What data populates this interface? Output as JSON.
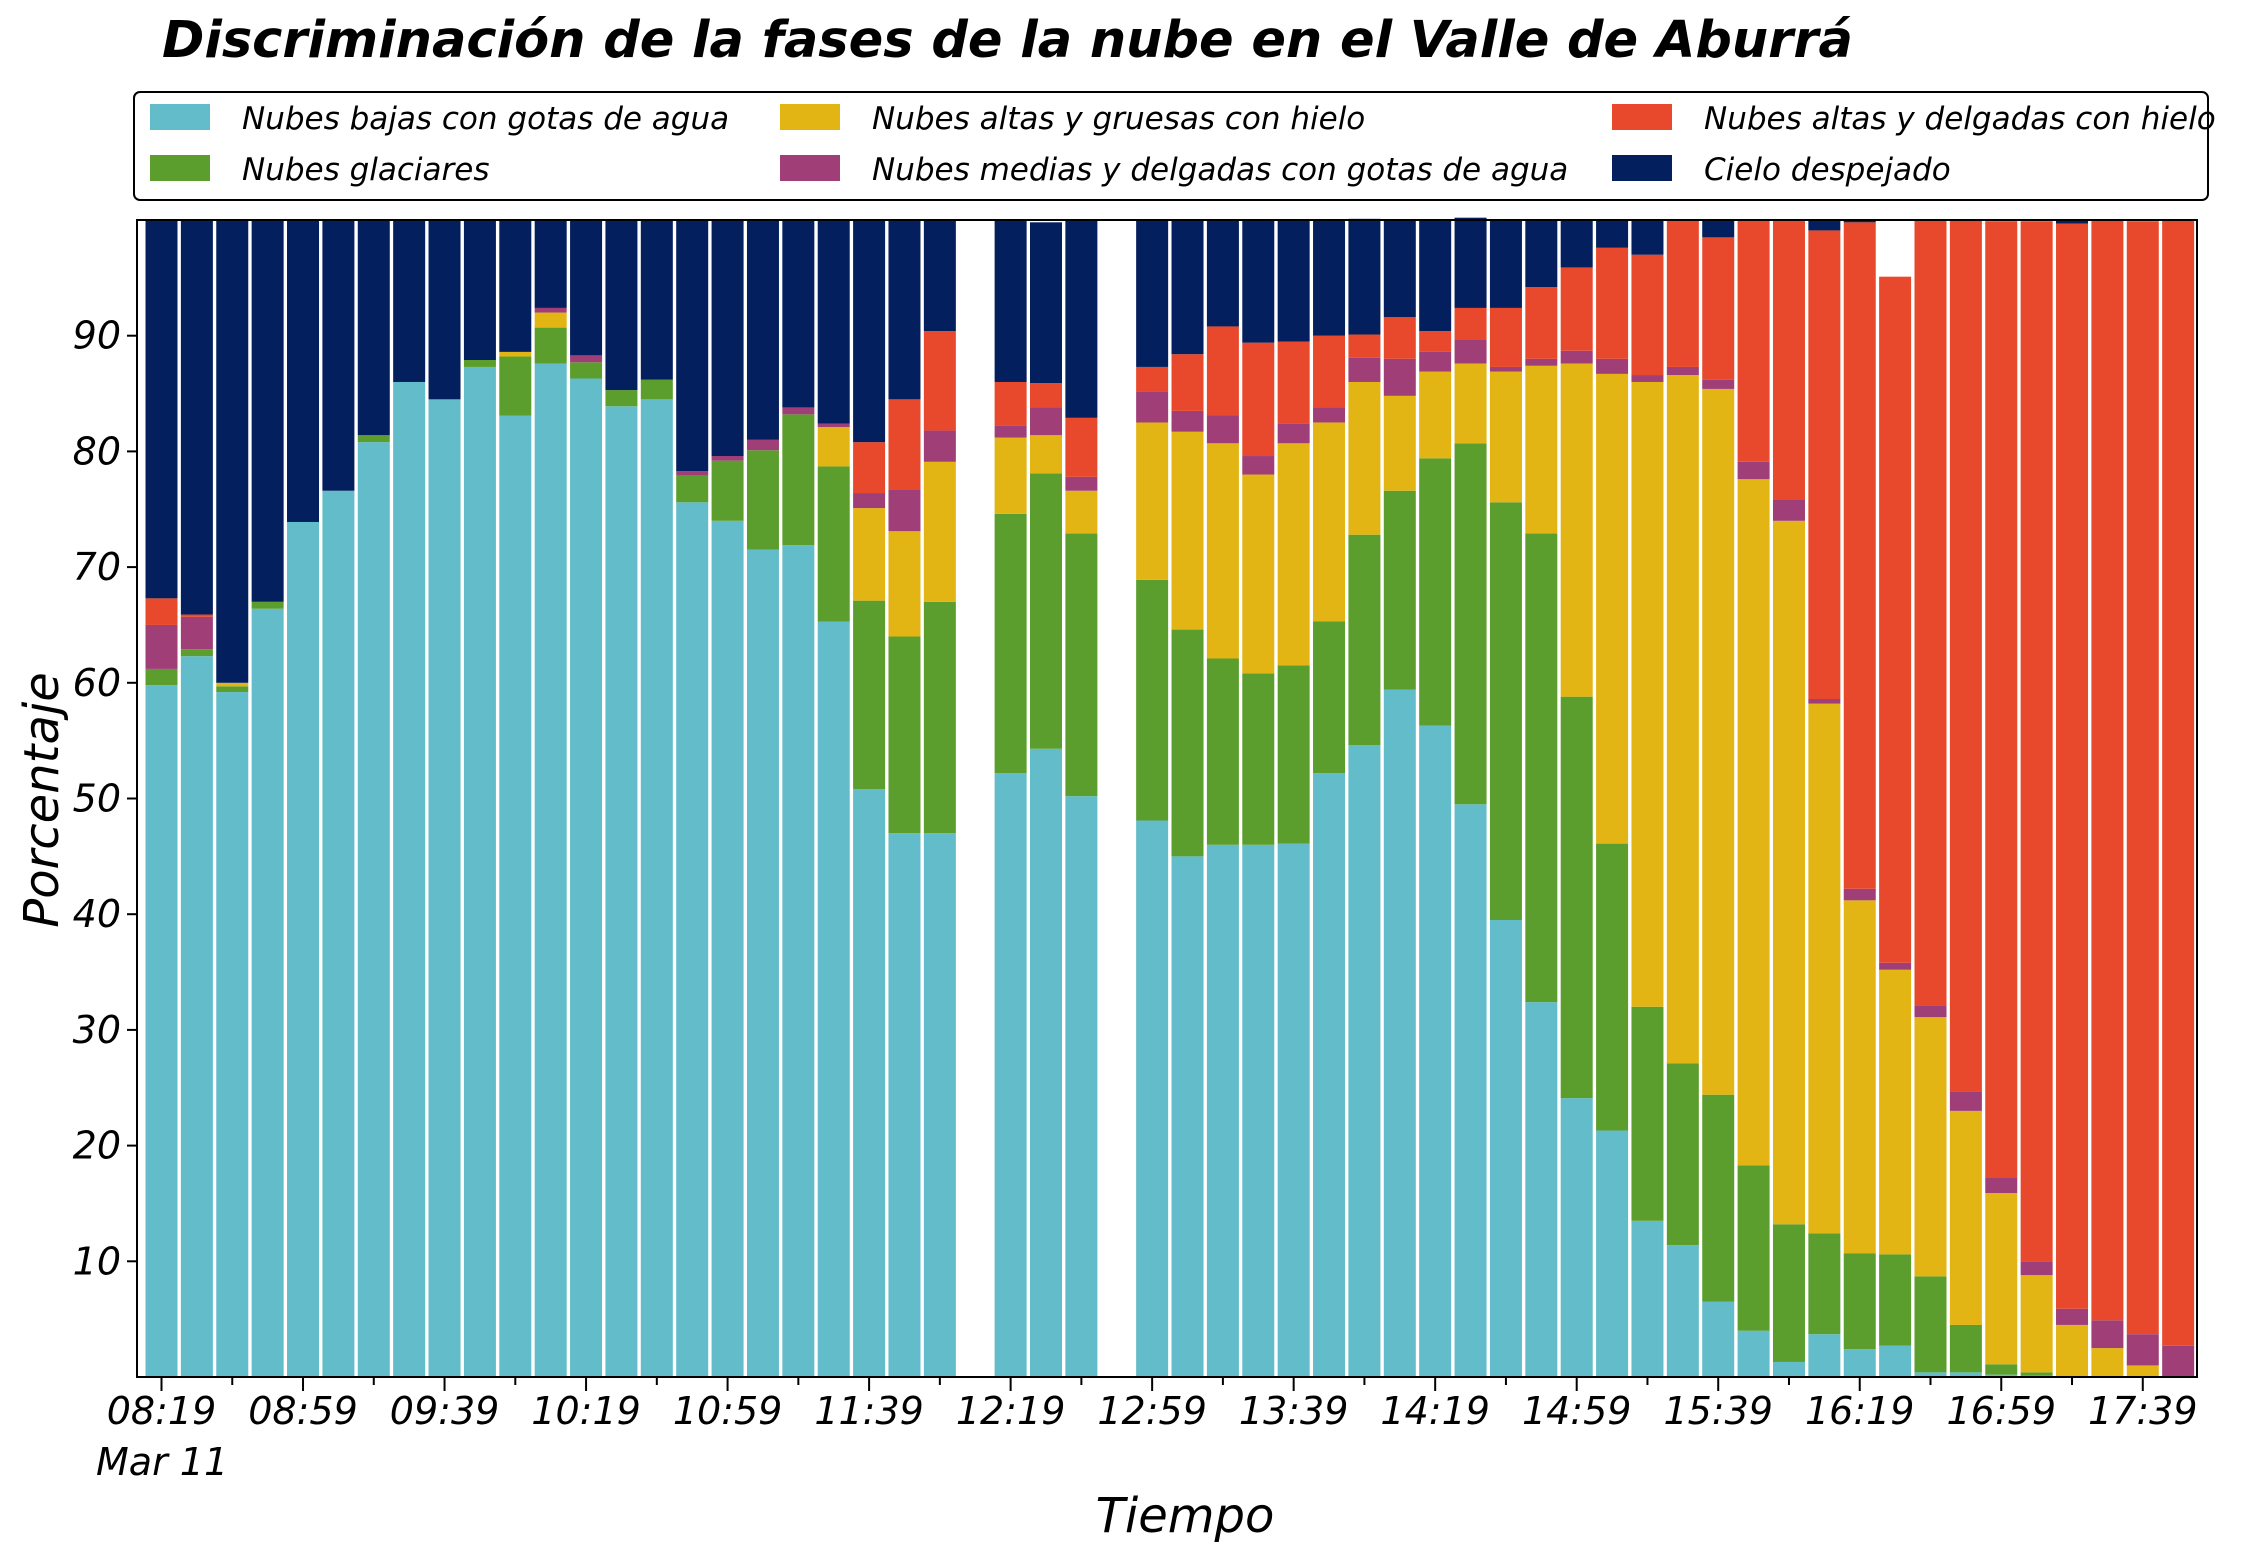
{
  "chart_data": {
    "type": "bar",
    "stacked": true,
    "title": "Discriminación de la fases de la nube en el Valle de Aburrá",
    "xlabel": "Tiempo",
    "ylabel": "Porcentaje",
    "ylim": [
      0,
      100
    ],
    "yticks": [
      10,
      20,
      30,
      40,
      50,
      60,
      70,
      80,
      90
    ],
    "date_label": "Mar 11",
    "xticks": [
      "08:19",
      "08:59",
      "09:39",
      "10:19",
      "10:59",
      "11:39",
      "12:19",
      "12:59",
      "13:39",
      "14:19",
      "14:59",
      "15:39",
      "16:19",
      "16:59",
      "17:39"
    ],
    "legend_position": "top",
    "categories": [
      "08:19",
      "08:29",
      "08:39",
      "08:49",
      "08:59",
      "09:09",
      "09:19",
      "09:29",
      "09:39",
      "09:49",
      "09:59",
      "10:09",
      "10:19",
      "10:29",
      "10:39",
      "10:49",
      "10:59",
      "11:09",
      "11:19",
      "11:29",
      "11:39",
      "11:49",
      "11:59",
      "12:09",
      "12:19",
      "12:29",
      "12:39",
      "12:49",
      "12:59",
      "13:09",
      "13:19",
      "13:29",
      "13:39",
      "13:49",
      "13:59",
      "14:09",
      "14:19",
      "14:29",
      "14:39",
      "14:49",
      "14:59",
      "15:09",
      "15:19",
      "15:29",
      "15:39",
      "15:49",
      "15:59",
      "16:09",
      "16:19",
      "16:29",
      "16:39",
      "16:49",
      "16:59",
      "17:09",
      "17:19",
      "17:29",
      "17:39",
      "17:49"
    ],
    "series": [
      {
        "name": "Nubes bajas con gotas de agua",
        "color": "#63bcc9",
        "values": [
          59.8,
          62.3,
          59.2,
          66.4,
          73.9,
          76.6,
          80.8,
          86,
          84.5,
          87.3,
          83.1,
          87.6,
          86.3,
          83.9,
          84.5,
          75.6,
          74,
          71.5,
          71.9,
          65.3,
          50.8,
          47,
          47,
          null,
          52.2,
          54.3,
          50.2,
          null,
          48.1,
          45,
          46,
          46,
          46.1,
          52.2,
          54.6,
          59.4,
          56.3,
          49.5,
          39.5,
          32.4,
          24.1,
          21.3,
          13.5,
          11.4,
          6.5,
          4,
          1.3,
          3.7,
          2.4,
          2.7,
          0.4,
          0.4,
          0.2,
          0.1,
          0,
          0,
          0,
          0
        ]
      },
      {
        "name": "Nubes glaciares",
        "color": "#5c9e2d",
        "values": [
          1.4,
          0.6,
          0.5,
          0.6,
          0,
          0,
          0.6,
          0,
          0,
          0.6,
          5.1,
          3.1,
          1.4,
          1.4,
          1.7,
          2.3,
          5.2,
          8.6,
          11.3,
          13.4,
          16.3,
          17,
          20,
          null,
          22.4,
          23.8,
          22.7,
          null,
          20.8,
          19.6,
          16.1,
          14.8,
          15.4,
          13.1,
          18.2,
          17.2,
          23.1,
          31.2,
          36.1,
          40.5,
          34.7,
          24.8,
          18.5,
          15.7,
          17.9,
          14.3,
          11.9,
          8.7,
          8.3,
          7.9,
          8.3,
          4.1,
          0.9,
          0.3,
          0,
          0,
          0,
          0
        ]
      },
      {
        "name": "Nubes altas y gruesas con hielo",
        "color": "#e2b514",
        "values": [
          0,
          0,
          0.3,
          0,
          0,
          0,
          0,
          0,
          0,
          0,
          0.4,
          1.3,
          0,
          0,
          0,
          0,
          0,
          0,
          0,
          3.4,
          8,
          9.1,
          12.1,
          null,
          6.6,
          3.3,
          3.7,
          null,
          13.6,
          17.1,
          18.6,
          17.2,
          19.2,
          17.2,
          13.2,
          8.2,
          7.5,
          6.9,
          11.3,
          14.5,
          28.8,
          40.6,
          54,
          59.5,
          61,
          59.3,
          60.8,
          45.8,
          30.5,
          24.6,
          22.4,
          18.5,
          14.8,
          8.4,
          4.5,
          2.5,
          1,
          0
        ]
      },
      {
        "name": "Nubes medias y delgadas con gotas de agua",
        "color": "#9f3e77",
        "values": [
          3.8,
          2.8,
          0,
          0,
          0,
          0,
          0,
          0,
          0,
          0,
          0,
          0.4,
          0.6,
          0,
          0,
          0.4,
          0.4,
          0.9,
          0.6,
          0.3,
          1.3,
          3.6,
          2.7,
          null,
          1,
          2.4,
          1.2,
          null,
          2.7,
          1.8,
          2.4,
          1.6,
          1.7,
          1.3,
          2.1,
          3.2,
          1.7,
          2.1,
          0.4,
          0.6,
          1.1,
          1.3,
          0.6,
          0.7,
          0.8,
          1.5,
          1.8,
          0.4,
          1,
          0.6,
          1,
          1.7,
          1.3,
          1.2,
          1.4,
          2.4,
          2.7,
          2.7
        ]
      },
      {
        "name": "Nubes altas y delgadas con hielo",
        "color": "#e8482b",
        "values": [
          2.3,
          0.2,
          0,
          0,
          0,
          0,
          0,
          0,
          0,
          0,
          0,
          0,
          0,
          0,
          0,
          0,
          0,
          0,
          0,
          0,
          4.4,
          7.8,
          8.6,
          null,
          3.8,
          2.1,
          5.1,
          null,
          2.1,
          4.9,
          7.7,
          9.8,
          7.1,
          6.2,
          2,
          3.6,
          1.8,
          2.7,
          5.1,
          6.2,
          7.2,
          9.6,
          10.4,
          12.6,
          12.3,
          20.8,
          24.1,
          40.5,
          57.6,
          59.3,
          67.9,
          75.3,
          82.7,
          89.9,
          93.8,
          95.1,
          96.2,
          97.3
        ]
      },
      {
        "name": "Cielo despejado",
        "color": "#041f5d",
        "values": [
          32.7,
          34.1,
          40,
          33,
          26.1,
          23.4,
          18.6,
          14,
          15.5,
          12.1,
          11.4,
          7.6,
          11.7,
          14.7,
          13.8,
          21.7,
          20.4,
          19,
          16.2,
          17.6,
          19.2,
          15.5,
          9.6,
          null,
          14,
          13.9,
          17.1,
          null,
          12.7,
          11.6,
          9.2,
          10.6,
          10.5,
          10,
          10,
          8.4,
          9.6,
          7.8,
          7.6,
          5.8,
          4.1,
          2.4,
          3,
          0.1,
          1.5,
          0.1,
          0.1,
          0.9,
          0.2,
          0,
          0,
          0,
          0,
          0,
          0.3,
          0,
          0,
          0
        ]
      }
    ]
  }
}
